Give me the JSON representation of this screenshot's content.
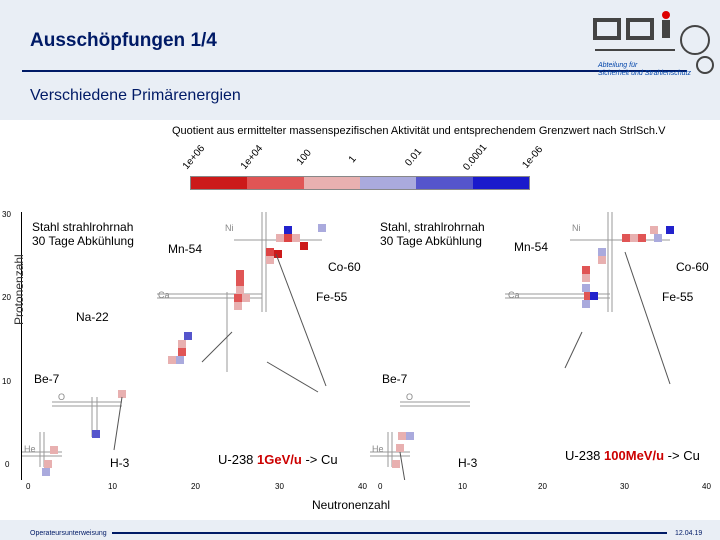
{
  "header": {
    "title": "Ausschöpfungen 1/4",
    "subtitle": "Verschiedene Primärenergien",
    "logo_caption_1": "Abteilung für",
    "logo_caption_2": "Sicherheit und Strahlenschutz"
  },
  "legend": {
    "caption": "Quotient aus ermittelter massenspezifischen Aktivität und entsprechendem Grenzwert nach StrlSch.V",
    "ticks": [
      "1e+06",
      "1e+04",
      "100",
      "1",
      "0.01",
      "0.0001",
      "1e-06"
    ],
    "colors": [
      "#cc1a1a",
      "#e05555",
      "#e8b0b0",
      "#aaaadd",
      "#5555cc",
      "#1a1acc"
    ]
  },
  "axes": {
    "ylabel": "Protonenzahl",
    "xlabel": "Neutronenzahl",
    "yticks": [
      "30",
      "20",
      "10",
      "0"
    ],
    "xticks": [
      "0",
      "10",
      "20",
      "30",
      "40"
    ]
  },
  "left_plot": {
    "note_line1": "Stahl strahlrohrnah",
    "note_line2": "30 Tage Abkühlung",
    "config_prefix": "U-238",
    "config_energy": "1GeV/u",
    "config_suffix": "-> Cu",
    "isotopes": [
      "Mn-54",
      "Co-60",
      "Fe-55",
      "Na-22",
      "Be-7",
      "H-3"
    ],
    "elements": [
      "Ni",
      "Ca",
      "O",
      "He"
    ]
  },
  "right_plot": {
    "note_line1": "Stahl, strahlrohrnah",
    "note_line2": "30 Tage Abkühlung",
    "config_prefix": "U-238",
    "config_energy": "100MeV/u",
    "config_suffix": "-> Cu",
    "isotopes": [
      "Mn-54",
      "Co-60",
      "Fe-55",
      "Be-7",
      "H-3"
    ],
    "elements": [
      "Ni",
      "Ca",
      "O",
      "He"
    ]
  },
  "footer": {
    "left": "Operateursunterweisung",
    "right": "12.04.19"
  }
}
